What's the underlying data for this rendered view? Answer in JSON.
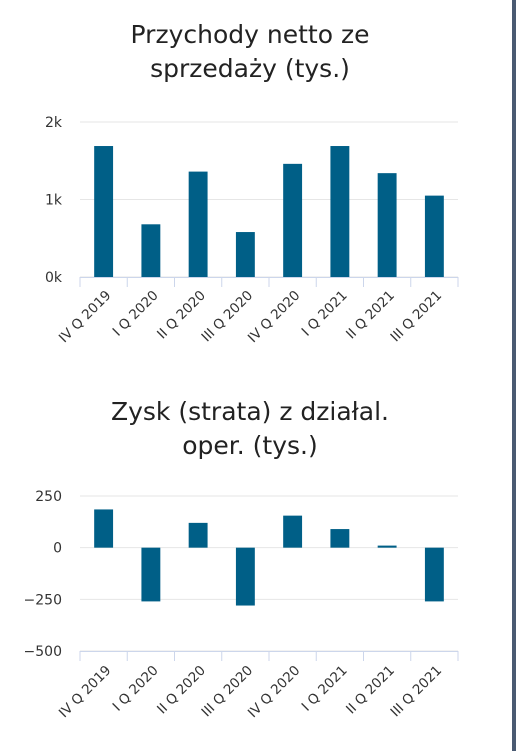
{
  "colors": {
    "bar": "#005f87",
    "grid": "#e6e6e6",
    "axis": "#ccd6eb",
    "text": "#333333",
    "border": "#4a5a72"
  },
  "charts": [
    {
      "title_line1": "Przychody netto ze",
      "title_line2": "sprzedaży (tys.)"
    },
    {
      "title_line1": "Zysk (strata) z działal.",
      "title_line2": "oper. (tys.)"
    }
  ],
  "chart_data": [
    {
      "type": "bar",
      "title": "Przychody netto ze sprzedaży (tys.)",
      "categories": [
        "IV Q 2019",
        "I Q 2020",
        "II Q 2020",
        "III Q 2020",
        "IV Q 2020",
        "I Q 2021",
        "II Q 2021",
        "III Q 2021"
      ],
      "values": [
        1690,
        680,
        1360,
        580,
        1460,
        1690,
        1340,
        1050
      ],
      "ylim": [
        0,
        2000
      ],
      "yticks": [
        0,
        1000,
        2000
      ],
      "ytick_labels": [
        "0k",
        "1k",
        "2k"
      ],
      "grid": true
    },
    {
      "type": "bar",
      "title": "Zysk (strata) z działal. oper. (tys.)",
      "categories": [
        "IV Q 2019",
        "I Q 2020",
        "II Q 2020",
        "III Q 2020",
        "IV Q 2020",
        "I Q 2021",
        "II Q 2021",
        "III Q 2021"
      ],
      "values": [
        185,
        -260,
        120,
        -280,
        155,
        90,
        10,
        -260
      ],
      "ylim": [
        -500,
        250
      ],
      "yticks": [
        -500,
        -250,
        0,
        250
      ],
      "ytick_labels": [
        "−500",
        "−250",
        "0",
        "250"
      ],
      "grid": true
    }
  ]
}
